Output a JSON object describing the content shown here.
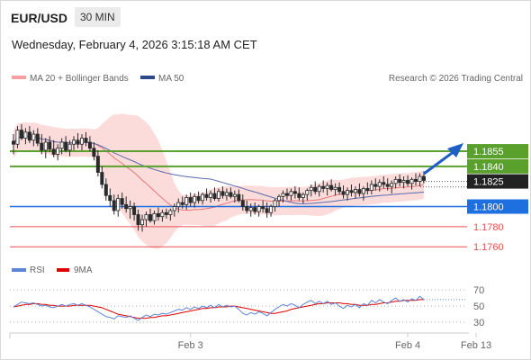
{
  "header": {
    "pair": "EUR/USD",
    "timeframe": "30 MIN",
    "datetime": "Wednesday, February 4, 2026 3:15:18 AM CET"
  },
  "legend": {
    "ma_bb": "MA 20 + Bollinger Bands",
    "ma50": "MA 50",
    "credit": "Research © 2026 Trading Central"
  },
  "rsi_legend": {
    "rsi": "RSI",
    "ma9": "9MA"
  },
  "colors": {
    "green": "#5aa02c",
    "blue": "#1e6fe0",
    "red": "#e85050",
    "dark": "#222222",
    "ma50": "#5a6aa8",
    "bb_fill": "#fcd5d5",
    "candle": "#2a2a2a"
  },
  "chart_data": [
    {
      "type": "candlestick",
      "ylim": [
        1.1745,
        1.1915
      ],
      "levels": [
        {
          "label": "1.1855",
          "value": 1.1855,
          "kind": "resistance"
        },
        {
          "label": "1.1840",
          "value": 1.184,
          "kind": "resistance"
        },
        {
          "label": "1.1825",
          "value": 1.1825,
          "kind": "current"
        },
        {
          "label": "1.1800",
          "value": 1.18,
          "kind": "pivot"
        },
        {
          "label": "1.1780",
          "value": 1.178,
          "kind": "support"
        },
        {
          "label": "1.1760",
          "value": 1.176,
          "kind": "support"
        }
      ],
      "x_ticks": [
        "Feb 3",
        "Feb 4",
        "Feb 13"
      ],
      "x_tick_index": [
        44,
        98,
        115
      ],
      "ohlc": [
        [
          1.1865,
          1.1872,
          1.1852,
          1.1862
        ],
        [
          1.1862,
          1.188,
          1.1858,
          1.1876
        ],
        [
          1.1876,
          1.1882,
          1.1866,
          1.1868
        ],
        [
          1.1868,
          1.1878,
          1.1862,
          1.1874
        ],
        [
          1.1874,
          1.188,
          1.1863,
          1.1866
        ],
        [
          1.1866,
          1.1876,
          1.186,
          1.1872
        ],
        [
          1.1872,
          1.1878,
          1.186,
          1.1863
        ],
        [
          1.1863,
          1.1872,
          1.1852,
          1.1856
        ],
        [
          1.1856,
          1.1868,
          1.1848,
          1.1864
        ],
        [
          1.1864,
          1.187,
          1.1854,
          1.1857
        ],
        [
          1.1857,
          1.1866,
          1.1849,
          1.1852
        ],
        [
          1.1852,
          1.1862,
          1.1846,
          1.1858
        ],
        [
          1.1858,
          1.1868,
          1.1852,
          1.1864
        ],
        [
          1.1864,
          1.187,
          1.1854,
          1.1856
        ],
        [
          1.1856,
          1.1866,
          1.185,
          1.1862
        ],
        [
          1.1862,
          1.187,
          1.1856,
          1.1866
        ],
        [
          1.1866,
          1.1873,
          1.1858,
          1.1862
        ],
        [
          1.1862,
          1.1872,
          1.1856,
          1.1868
        ],
        [
          1.1868,
          1.1874,
          1.186,
          1.1864
        ],
        [
          1.1864,
          1.187,
          1.1855,
          1.1858
        ],
        [
          1.1858,
          1.1864,
          1.1846,
          1.185
        ],
        [
          1.185,
          1.1856,
          1.183,
          1.1834
        ],
        [
          1.1834,
          1.184,
          1.1818,
          1.1822
        ],
        [
          1.1822,
          1.1828,
          1.1806,
          1.1811
        ],
        [
          1.1811,
          1.1818,
          1.18,
          1.1806
        ],
        [
          1.1806,
          1.1812,
          1.1792,
          1.1796
        ],
        [
          1.1796,
          1.1812,
          1.179,
          1.1808
        ],
        [
          1.1808,
          1.1814,
          1.1798,
          1.1802
        ],
        [
          1.1802,
          1.181,
          1.1794,
          1.1798
        ],
        [
          1.1798,
          1.1806,
          1.1788,
          1.18
        ],
        [
          1.18,
          1.1804,
          1.1786,
          1.1792
        ],
        [
          1.1792,
          1.1797,
          1.1776,
          1.1782
        ],
        [
          1.1782,
          1.1792,
          1.1775,
          1.1787
        ],
        [
          1.1787,
          1.1795,
          1.178,
          1.1792
        ],
        [
          1.1792,
          1.1798,
          1.1784,
          1.1786
        ],
        [
          1.1786,
          1.1796,
          1.1782,
          1.1793
        ],
        [
          1.1793,
          1.1799,
          1.1786,
          1.179
        ],
        [
          1.179,
          1.1797,
          1.1785,
          1.1794
        ],
        [
          1.1794,
          1.1798,
          1.1788,
          1.1792
        ],
        [
          1.1792,
          1.1798,
          1.1786,
          1.1796
        ],
        [
          1.1796,
          1.1803,
          1.179,
          1.18
        ],
        [
          1.18,
          1.1808,
          1.1794,
          1.1804
        ],
        [
          1.1804,
          1.181,
          1.1798,
          1.1802
        ],
        [
          1.1802,
          1.1812,
          1.1797,
          1.1809
        ],
        [
          1.1809,
          1.1814,
          1.18,
          1.1804
        ],
        [
          1.1804,
          1.1813,
          1.1799,
          1.181
        ],
        [
          1.181,
          1.1815,
          1.1803,
          1.1806
        ],
        [
          1.1806,
          1.1814,
          1.1802,
          1.1812
        ],
        [
          1.1812,
          1.1818,
          1.1806,
          1.1809
        ],
        [
          1.1809,
          1.1816,
          1.1804,
          1.1813
        ],
        [
          1.1813,
          1.1819,
          1.1806,
          1.1808
        ],
        [
          1.1808,
          1.1818,
          1.1805,
          1.1815
        ],
        [
          1.1815,
          1.182,
          1.1808,
          1.1811
        ],
        [
          1.1811,
          1.1818,
          1.1806,
          1.1814
        ],
        [
          1.1814,
          1.1819,
          1.1808,
          1.181
        ],
        [
          1.181,
          1.1816,
          1.1804,
          1.1812
        ],
        [
          1.1812,
          1.1817,
          1.1804,
          1.1806
        ],
        [
          1.1806,
          1.1812,
          1.1796,
          1.18
        ],
        [
          1.18,
          1.1806,
          1.1793,
          1.1796
        ],
        [
          1.1796,
          1.1803,
          1.179,
          1.1799
        ],
        [
          1.1799,
          1.1804,
          1.1792,
          1.1795
        ],
        [
          1.1795,
          1.1802,
          1.179,
          1.18
        ],
        [
          1.18,
          1.1806,
          1.1794,
          1.1798
        ],
        [
          1.1798,
          1.1804,
          1.1789,
          1.1794
        ],
        [
          1.1794,
          1.1802,
          1.179,
          1.18
        ],
        [
          1.18,
          1.1808,
          1.1795,
          1.1806
        ],
        [
          1.1806,
          1.1812,
          1.18,
          1.181
        ],
        [
          1.181,
          1.1816,
          1.1804,
          1.1813
        ],
        [
          1.1813,
          1.1818,
          1.1807,
          1.1811
        ],
        [
          1.1811,
          1.1818,
          1.1806,
          1.1815
        ],
        [
          1.1815,
          1.182,
          1.1808,
          1.1813
        ],
        [
          1.1813,
          1.1819,
          1.1806,
          1.1809
        ],
        [
          1.1809,
          1.1814,
          1.1803,
          1.1812
        ],
        [
          1.1812,
          1.1818,
          1.1806,
          1.1816
        ],
        [
          1.1816,
          1.1822,
          1.181,
          1.1819
        ],
        [
          1.1819,
          1.1825,
          1.1812,
          1.1815
        ],
        [
          1.1815,
          1.1822,
          1.181,
          1.182
        ],
        [
          1.182,
          1.1826,
          1.1814,
          1.1818
        ],
        [
          1.1818,
          1.1824,
          1.1811,
          1.1821
        ],
        [
          1.1821,
          1.1827,
          1.1815,
          1.1817
        ],
        [
          1.1817,
          1.1823,
          1.1811,
          1.1819
        ],
        [
          1.1819,
          1.1824,
          1.1812,
          1.1815
        ],
        [
          1.1815,
          1.1821,
          1.1808,
          1.1812
        ],
        [
          1.1812,
          1.1819,
          1.1806,
          1.1816
        ],
        [
          1.1816,
          1.1822,
          1.181,
          1.1814
        ],
        [
          1.1814,
          1.182,
          1.1808,
          1.1817
        ],
        [
          1.1817,
          1.1823,
          1.181,
          1.1813
        ],
        [
          1.1813,
          1.182,
          1.1806,
          1.1818
        ],
        [
          1.1818,
          1.1824,
          1.1812,
          1.1816
        ],
        [
          1.1816,
          1.1826,
          1.1812,
          1.1822
        ],
        [
          1.1822,
          1.1828,
          1.1816,
          1.182
        ],
        [
          1.182,
          1.1827,
          1.1815,
          1.1824
        ],
        [
          1.1824,
          1.183,
          1.1818,
          1.1822
        ],
        [
          1.1822,
          1.1828,
          1.1816,
          1.182
        ],
        [
          1.182,
          1.1826,
          1.1813,
          1.1823
        ],
        [
          1.1823,
          1.183,
          1.1818,
          1.1827
        ],
        [
          1.1827,
          1.1832,
          1.182,
          1.1824
        ],
        [
          1.1824,
          1.183,
          1.1818,
          1.1826
        ],
        [
          1.1826,
          1.1831,
          1.182,
          1.1823
        ],
        [
          1.1823,
          1.1829,
          1.1817,
          1.1827
        ],
        [
          1.1827,
          1.1833,
          1.1821,
          1.1825
        ],
        [
          1.1825,
          1.1833,
          1.182,
          1.183
        ],
        [
          1.183,
          1.1835,
          1.1823,
          1.1826
        ]
      ]
    },
    {
      "type": "line",
      "title": "",
      "ylim": [
        20,
        78
      ],
      "y_ticks": [
        30,
        50,
        70
      ],
      "series": [
        {
          "name": "RSI",
          "values": [
            49,
            52,
            55,
            54,
            53,
            54,
            52,
            50,
            51,
            49,
            48,
            50,
            52,
            50,
            52,
            53,
            51,
            53,
            51,
            49,
            46,
            43,
            40,
            37,
            36,
            34,
            38,
            37,
            36,
            38,
            35,
            32,
            36,
            39,
            37,
            40,
            39,
            41,
            40,
            42,
            44,
            46,
            45,
            48,
            46,
            49,
            47,
            50,
            48,
            51,
            48,
            52,
            49,
            51,
            49,
            50,
            46,
            41,
            39,
            42,
            40,
            43,
            41,
            38,
            42,
            46,
            49,
            52,
            50,
            53,
            51,
            48,
            52,
            55,
            57,
            53,
            56,
            53,
            56,
            52,
            54,
            50,
            47,
            51,
            49,
            52,
            48,
            53,
            51,
            57,
            54,
            58,
            55,
            53,
            57,
            60,
            56,
            58,
            55,
            59,
            57,
            62,
            58
          ]
        },
        {
          "name": "9MA",
          "values": [
            49,
            50,
            51,
            52,
            52,
            53,
            53,
            52,
            52,
            51,
            51,
            50,
            50,
            50,
            50,
            51,
            51,
            51,
            51,
            51,
            50,
            49,
            48,
            46,
            44,
            42,
            40,
            39,
            38,
            37,
            36,
            35,
            35,
            35,
            36,
            36,
            37,
            38,
            38,
            39,
            40,
            41,
            42,
            43,
            44,
            45,
            46,
            47,
            47,
            48,
            48,
            49,
            49,
            49,
            50,
            50,
            49,
            48,
            47,
            46,
            45,
            44,
            43,
            42,
            41,
            41,
            42,
            43,
            44,
            46,
            47,
            48,
            49,
            50,
            51,
            52,
            53,
            53,
            54,
            54,
            54,
            54,
            53,
            53,
            52,
            52,
            51,
            51,
            51,
            52,
            52,
            53,
            54,
            54,
            55,
            56,
            56,
            57,
            57,
            57,
            57,
            58,
            58
          ]
        }
      ]
    }
  ]
}
